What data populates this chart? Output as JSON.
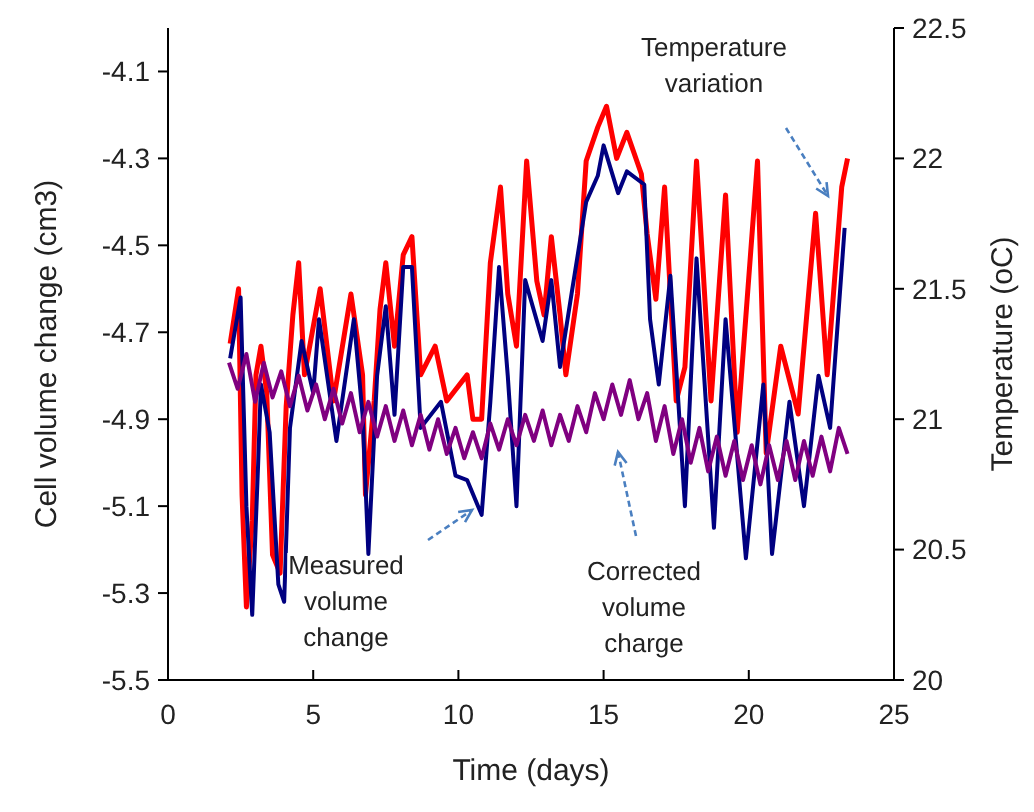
{
  "chart_data": {
    "type": "line",
    "xlabel": "Time (days)",
    "ylabel": "Cell volume change (cm3)",
    "y2label": "Temperature (oC)",
    "xlim": [
      0,
      25
    ],
    "xticks": [
      0,
      5,
      10,
      15,
      20,
      25
    ],
    "ylim": [
      -5.5,
      -4.0
    ],
    "yticks": [
      -5.5,
      -5.3,
      -5.1,
      -4.9,
      -4.7,
      -4.5,
      -4.3,
      -4.1
    ],
    "y2lim": [
      20,
      22.5
    ],
    "y2ticks": [
      20,
      20.5,
      21,
      21.5,
      22,
      22.5
    ],
    "grid": false,
    "marker": "none",
    "line_style": "solid",
    "series": [
      {
        "type": "line",
        "axis": "y2",
        "color": "#ff0000",
        "x": [
          2.14,
          2.43,
          2.55,
          2.7,
          2.9,
          3.03,
          3.2,
          3.4,
          3.6,
          3.86,
          4.07,
          4.3,
          4.5,
          4.7,
          5.24,
          5.7,
          6.3,
          6.7,
          6.8,
          7.1,
          7.3,
          7.5,
          7.8,
          8.1,
          8.4,
          8.7,
          9.2,
          9.6,
          10.3,
          10.5,
          10.8,
          11.1,
          11.45,
          11.7,
          12.0,
          12.35,
          12.7,
          12.95,
          13.2,
          13.5,
          13.7,
          14.1,
          14.4,
          14.8,
          15.1,
          15.45,
          15.8,
          16.3,
          16.5,
          16.8,
          17.1,
          17.5,
          17.8,
          18.2,
          18.7,
          19.2,
          19.6,
          20.3,
          20.6,
          21.1,
          21.7,
          22.3,
          22.7,
          23.2,
          23.4
        ],
        "values": [
          21.29,
          21.5,
          20.71,
          20.28,
          20.61,
          21.17,
          21.28,
          21.1,
          20.48,
          20.41,
          21.05,
          21.4,
          21.6,
          21.17,
          21.5,
          21.07,
          21.48,
          21.17,
          20.71,
          21.07,
          21.42,
          21.6,
          21.28,
          21.63,
          21.7,
          21.17,
          21.28,
          21.07,
          21.17,
          21.0,
          21.0,
          21.6,
          21.89,
          21.48,
          21.28,
          21.99,
          21.53,
          21.4,
          21.7,
          21.4,
          21.17,
          21.48,
          21.99,
          22.12,
          22.2,
          22.0,
          22.1,
          21.94,
          21.71,
          21.46,
          21.89,
          21.07,
          21.2,
          21.99,
          21.07,
          21.86,
          20.95,
          21.99,
          20.87,
          21.28,
          21.02,
          21.79,
          21.17,
          21.89,
          22.0
        ]
      },
      {
        "type": "line",
        "color": "#000080",
        "x": [
          2.14,
          2.5,
          2.7,
          2.9,
          3.1,
          3.2,
          3.5,
          3.8,
          4.0,
          4.2,
          4.6,
          5.0,
          5.2,
          5.8,
          6.4,
          6.7,
          6.9,
          7.2,
          7.5,
          7.8,
          8.1,
          8.4,
          8.7,
          9.4,
          9.9,
          10.3,
          10.8,
          11.1,
          11.4,
          11.7,
          12.0,
          12.3,
          12.9,
          13.2,
          13.5,
          13.9,
          14.4,
          14.8,
          15.0,
          15.5,
          15.8,
          16.4,
          16.6,
          16.9,
          17.3,
          17.8,
          18.2,
          18.8,
          19.2,
          19.9,
          20.5,
          20.8,
          21.4,
          21.9,
          22.4,
          22.8,
          23.3
        ],
        "values": [
          -4.76,
          -4.62,
          -5.1,
          -5.35,
          -5.01,
          -4.82,
          -4.93,
          -5.28,
          -5.32,
          -4.92,
          -4.72,
          -4.84,
          -4.67,
          -4.95,
          -4.67,
          -4.89,
          -5.21,
          -4.8,
          -4.64,
          -4.89,
          -4.55,
          -4.55,
          -4.92,
          -4.86,
          -5.03,
          -5.04,
          -5.12,
          -4.86,
          -4.55,
          -4.8,
          -5.1,
          -4.58,
          -4.72,
          -4.58,
          -4.78,
          -4.61,
          -4.4,
          -4.34,
          -4.27,
          -4.38,
          -4.33,
          -4.36,
          -4.67,
          -4.82,
          -4.57,
          -5.1,
          -4.53,
          -5.15,
          -4.67,
          -5.22,
          -4.82,
          -5.21,
          -4.86,
          -5.1,
          -4.8,
          -4.92,
          -4.46
        ]
      },
      {
        "type": "line",
        "color": "#800080",
        "x": [
          2.1,
          2.4,
          2.7,
          3.0,
          3.3,
          3.6,
          3.9,
          4.2,
          4.5,
          4.8,
          5.1,
          5.4,
          5.7,
          6.0,
          6.3,
          6.6,
          6.9,
          7.2,
          7.5,
          7.8,
          8.1,
          8.4,
          8.7,
          9.0,
          9.3,
          9.6,
          9.9,
          10.2,
          10.5,
          10.8,
          11.1,
          11.4,
          11.7,
          12.0,
          12.3,
          12.6,
          12.9,
          13.2,
          13.5,
          13.8,
          14.1,
          14.4,
          14.7,
          15.0,
          15.3,
          15.6,
          15.9,
          16.2,
          16.5,
          16.8,
          17.1,
          17.4,
          17.7,
          18.0,
          18.3,
          18.6,
          18.9,
          19.2,
          19.5,
          19.8,
          20.1,
          20.4,
          20.7,
          21.0,
          21.3,
          21.6,
          21.9,
          22.2,
          22.5,
          22.8,
          23.1,
          23.4
        ],
        "values": [
          -4.77,
          -4.83,
          -4.75,
          -4.86,
          -4.77,
          -4.85,
          -4.79,
          -4.87,
          -4.8,
          -4.88,
          -4.82,
          -4.9,
          -4.83,
          -4.91,
          -4.84,
          -4.93,
          -4.86,
          -4.94,
          -4.87,
          -4.95,
          -4.88,
          -4.96,
          -4.89,
          -4.97,
          -4.9,
          -4.98,
          -4.92,
          -4.99,
          -4.93,
          -4.99,
          -4.91,
          -4.97,
          -4.9,
          -4.96,
          -4.89,
          -4.95,
          -4.88,
          -4.96,
          -4.89,
          -4.95,
          -4.87,
          -4.93,
          -4.84,
          -4.9,
          -4.82,
          -4.89,
          -4.81,
          -4.9,
          -4.84,
          -4.95,
          -4.87,
          -4.98,
          -4.9,
          -5.0,
          -4.92,
          -5.02,
          -4.94,
          -5.03,
          -4.95,
          -5.04,
          -4.96,
          -5.05,
          -4.96,
          -5.04,
          -4.95,
          -5.04,
          -4.95,
          -5.03,
          -4.94,
          -5.02,
          -4.92,
          -4.98
        ]
      }
    ],
    "annotations": [
      "Temperature variation",
      "Measured volume change",
      "Corrected volume charge"
    ]
  }
}
